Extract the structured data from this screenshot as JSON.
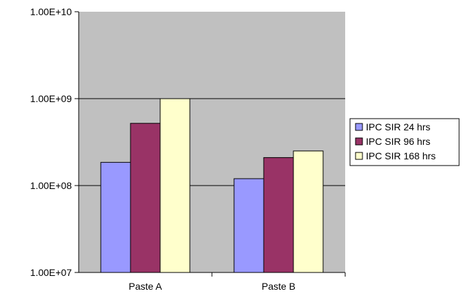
{
  "chart_data": {
    "type": "bar",
    "title": "",
    "xlabel": "",
    "ylabel": "",
    "yscale": "log",
    "ylim": [
      10000000,
      10000000000
    ],
    "yticks": [
      "1.00E+07",
      "1.00E+08",
      "1.00E+09",
      "1.00E+10"
    ],
    "categories": [
      "Paste A",
      "Paste B"
    ],
    "series": [
      {
        "name": "IPC SIR 24 hrs",
        "color": "#9999ff",
        "values": [
          185000000,
          120000000
        ]
      },
      {
        "name": "IPC SIR 96 hrs",
        "color": "#993366",
        "values": [
          520000000,
          210000000
        ]
      },
      {
        "name": "IPC SIR 168 hrs",
        "color": "#ffffcc",
        "values": [
          1000000000,
          250000000
        ]
      }
    ],
    "plot_background": "#c0c0c0",
    "grid": true,
    "legend_position": "right"
  }
}
